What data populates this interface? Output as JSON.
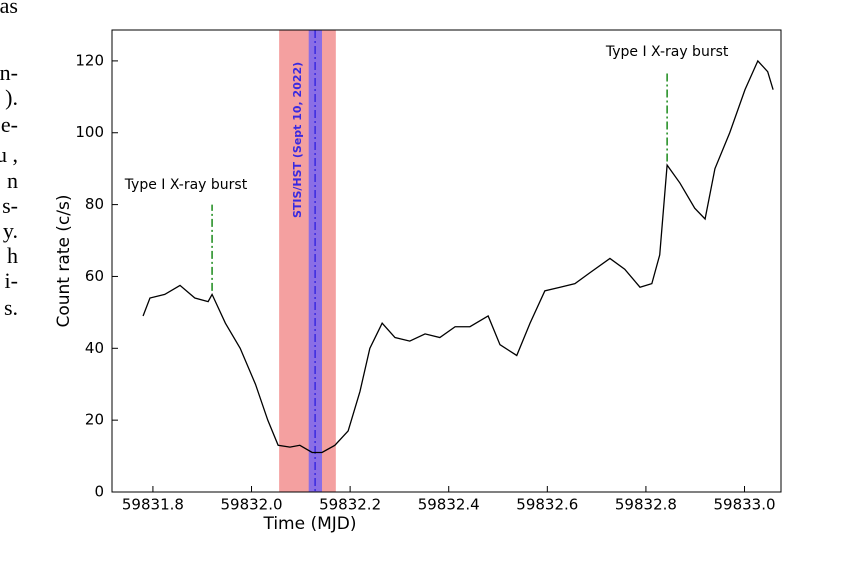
{
  "side_text": [
    "as",
    "n-",
    ").",
    "e-",
    "u ,",
    "n",
    "s-",
    "y.",
    "h",
    "i-",
    "s."
  ],
  "chart_data": {
    "type": "line",
    "xlabel": "Time (MJD)",
    "ylabel": "Count rate (c/s)",
    "xlim": [
      59831.717,
      59833.074
    ],
    "ylim": [
      0,
      128.6
    ],
    "xticks": [
      59831.8,
      {
        "value": 59832,
        "label": "59832.0"
      },
      59832.2,
      59832.4,
      59832.6,
      59832.8,
      {
        "value": 59833,
        "label": "59833.0"
      }
    ],
    "yticks": [
      0,
      20,
      40,
      60,
      80,
      100,
      120
    ],
    "grid": false,
    "x": [
      59831.78,
      59831.794,
      59831.824,
      59831.855,
      59831.885,
      59831.912,
      59831.92,
      59831.947,
      59831.977,
      59832.008,
      59832.033,
      59832.054,
      59832.078,
      59832.098,
      59832.123,
      59832.143,
      59832.169,
      59832.196,
      59832.22,
      59832.24,
      59832.265,
      59832.291,
      59832.321,
      59832.352,
      59832.382,
      59832.413,
      59832.443,
      59832.48,
      59832.504,
      59832.538,
      59832.565,
      59832.595,
      59832.626,
      59832.656,
      59832.686,
      59832.727,
      59832.757,
      59832.788,
      59832.812,
      59832.828,
      59832.843,
      59832.869,
      59832.899,
      59832.92,
      59832.94,
      59832.97,
      59833.001,
      59833.027,
      59833.047,
      59833.058
    ],
    "series": [
      {
        "color": "#000000",
        "values": [
          49,
          54,
          55,
          57.5,
          54,
          53,
          55,
          47,
          40,
          30,
          20,
          13,
          12.5,
          13,
          11,
          11,
          13,
          17,
          28,
          40,
          47,
          43,
          42,
          44,
          43,
          46,
          46,
          49,
          41,
          38,
          47,
          56,
          57,
          58,
          61,
          65,
          62,
          57,
          58,
          66,
          91,
          86,
          79,
          76,
          90,
          100,
          112,
          120,
          117,
          112
        ]
      }
    ],
    "bands": [
      {
        "x0": 59832.056,
        "x1": 59832.171,
        "color": "#f4a0a0"
      },
      {
        "x0": 59832.116,
        "x1": 59832.143,
        "color": "#8a6ee6"
      }
    ],
    "vline": {
      "x": 59832.129,
      "color": "#3a2ae0",
      "label": "STIS/HST (Sept 10, 2022)",
      "label_x": 59832.094,
      "label_y": 98
    },
    "annotations": [
      {
        "text": "Type I X-ray burst",
        "x": 59831.92,
        "y0": 56,
        "y1": 80,
        "text_x": 59831.867,
        "text_y": 85.5,
        "color": "#1a8a1a"
      },
      {
        "text": "Type I X-ray burst",
        "x": 59832.843,
        "y0": 92,
        "y1": 117,
        "text_x": 59832.843,
        "text_y": 122.5,
        "color": "#1a8a1a"
      }
    ]
  }
}
